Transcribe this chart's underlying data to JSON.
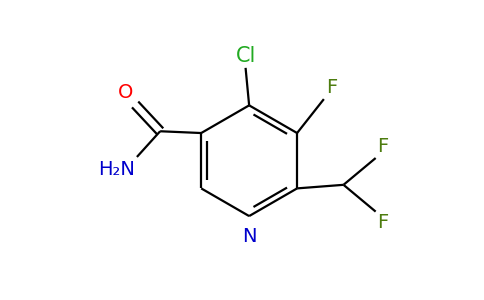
{
  "background_color": "#ffffff",
  "bond_color": "#000000",
  "atom_colors": {
    "C": "#000000",
    "N": "#0000cc",
    "O": "#ff0000",
    "F": "#4d7c0f",
    "Cl": "#22aa22",
    "H2N": "#0000cc"
  },
  "figsize": [
    4.84,
    3.0
  ],
  "dpi": 100,
  "lw": 1.6,
  "fs": 14
}
